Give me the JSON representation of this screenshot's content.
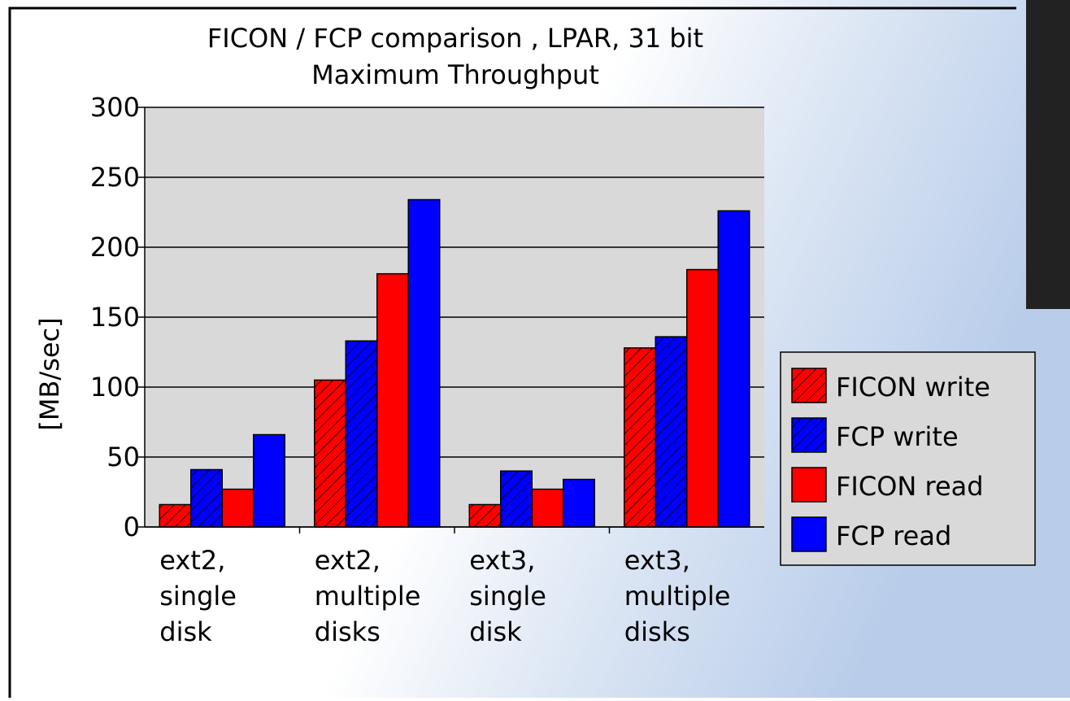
{
  "chart_data": {
    "type": "bar",
    "title": "FICON / FCP comparison , LPAR, 31 bit",
    "subtitle": "Maximum Throughput",
    "y_label": "[MB/sec]",
    "categories": [
      "ext2,\nsingle\ndisk",
      "ext2,\nmultiple\ndisks",
      "ext3,\nsingle\ndisk",
      "ext3,\nmultiple\ndisks"
    ],
    "series": [
      {
        "name": "FICON write",
        "color": "#ff0000",
        "hatch": true,
        "values": [
          16,
          105,
          16,
          128
        ]
      },
      {
        "name": "FCP write",
        "color": "#0000ff",
        "hatch": true,
        "values": [
          41,
          133,
          40,
          136
        ]
      },
      {
        "name": "FICON read",
        "color": "#ff0000",
        "hatch": false,
        "values": [
          27,
          181,
          27,
          184
        ]
      },
      {
        "name": "FCP read",
        "color": "#0000ff",
        "hatch": false,
        "values": [
          66,
          234,
          34,
          226
        ]
      }
    ],
    "ylim": [
      0,
      300
    ],
    "yticks": [
      0,
      50,
      100,
      150,
      200,
      250,
      300
    ],
    "grid": true,
    "legend": "right"
  }
}
